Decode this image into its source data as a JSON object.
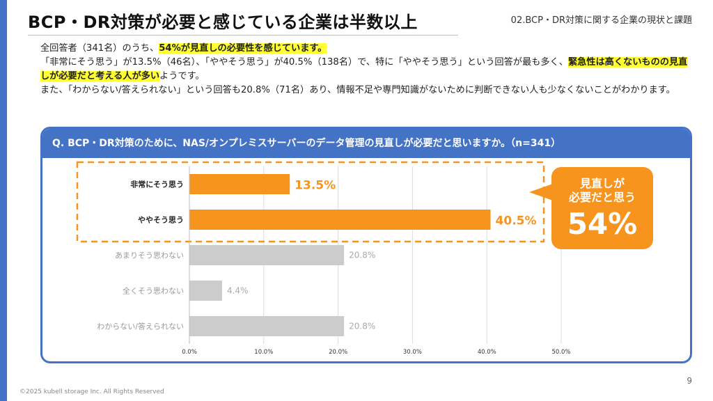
{
  "slide": {
    "title": "BCP・DR対策が必要と感じている企業は半数以上",
    "section": "02.BCP・DR対策に関する企業の現状と課題",
    "page_number": "9",
    "copyright": "©2025 kubell storage Inc. All Rights Reserved"
  },
  "body": {
    "l1_a": "全回答者（341名）のうち、",
    "l1_b": "54%が見直しの必要性を感じています。",
    "l2_a": "「非常にそう思う」が13.5%（46名）、「ややそう思う」が40.5%（138名）で、特に「ややそう思う」という回答が最も多く、",
    "l2_b": "緊急性は高くないものの見直しが必要だと考える人が多い",
    "l2_c": "ようです。",
    "l3": "また、「わからない/答えられない」という回答も20.8%（71名）あり、情報不足や専門知識がないために判断できない人も少なくないことがわかります。"
  },
  "question": "Q. BCP・DR対策のために、NAS/オンプレミスサーバーのデータ管理の見直しが必要だと思いますか。（n=341）",
  "callout": {
    "line1": "見直しが",
    "line2": "必要だと思う",
    "value": "54%"
  },
  "colors": {
    "accent_blue": "#4472c4",
    "highlight_orange": "#f7941d",
    "muted_bar": "#cccccc",
    "highlight_yellow": "#ffff33"
  },
  "chart_data": {
    "type": "bar",
    "orientation": "horizontal",
    "categories": [
      "非常にそう思う",
      "ややそう思う",
      "あまりそう思わない",
      "全くそう思わない",
      "わからない/答えられない"
    ],
    "values": [
      13.5,
      40.5,
      20.8,
      4.4,
      20.8
    ],
    "value_labels": [
      "13.5%",
      "40.5%",
      "20.8%",
      "4.4%",
      "20.8%"
    ],
    "highlighted": [
      true,
      true,
      false,
      false,
      false
    ],
    "xlim": [
      0,
      50
    ],
    "xticks": [
      "0.0%",
      "10.0%",
      "20.0%",
      "30.0%",
      "40.0%",
      "50.0%"
    ],
    "grid": true,
    "legend": "none"
  }
}
